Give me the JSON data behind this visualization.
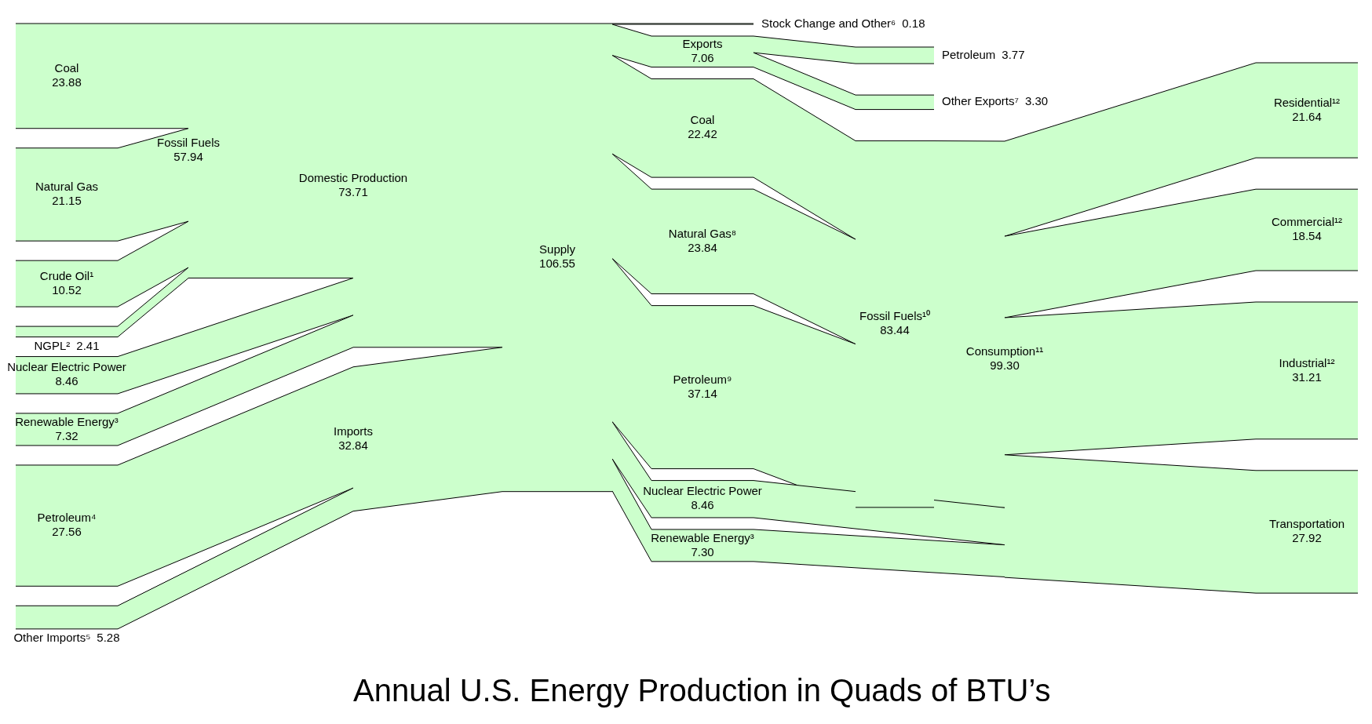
{
  "chart_data": {
    "type": "other",
    "title": "Annual U.S. Energy Production in Quads of BTU’s",
    "categories": [
      "Coal",
      "Natural Gas",
      "Crude Oil¹",
      "NGPL²",
      "Nuclear Electric Power",
      "Renewable Energy³",
      "Petroleum⁴",
      "Other Imports⁵",
      "Fossil Fuels",
      "Domestic Production",
      "Imports",
      "Supply",
      "Stock Change and Other⁶",
      "Exports",
      "Petroleum",
      "Other Exports⁷",
      "Coal",
      "Natural Gas⁸",
      "Petroleum⁹",
      "Fossil Fuels¹⁰",
      "Nuclear Electric Power",
      "Renewable Energy³",
      "Consumption¹¹",
      "Residential¹²",
      "Commercial¹²",
      "Industrial¹²",
      "Transportation"
    ],
    "values": [
      23.88,
      21.15,
      10.52,
      2.41,
      8.46,
      7.32,
      27.56,
      5.28,
      57.94,
      73.71,
      32.84,
      106.55,
      0.18,
      7.06,
      3.77,
      3.3,
      22.42,
      23.84,
      37.14,
      83.44,
      8.46,
      7.3,
      99.3,
      21.64,
      18.54,
      31.21,
      27.92
    ],
    "value_labels": [
      "23.88",
      "21.15",
      "10.52",
      "2.41",
      "8.46",
      "7.32",
      "27.56",
      "5.28",
      "57.94",
      "73.71",
      "32.84",
      "106.55",
      "0.18",
      "7.06",
      "3.77",
      "3.30",
      "22.42",
      "23.84",
      "37.14",
      "83.44",
      "8.46",
      "7.30",
      "99.30",
      "21.64",
      "18.54",
      "31.21",
      "27.92"
    ],
    "color": "#ccffcc"
  }
}
